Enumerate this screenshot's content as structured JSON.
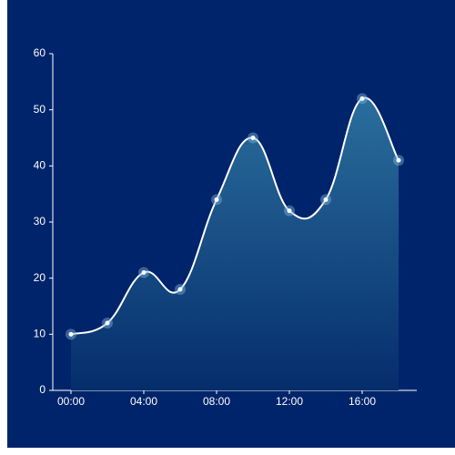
{
  "chart_data": {
    "type": "area",
    "categories": [
      "00:00",
      null,
      "04:00",
      null,
      "08:00",
      null,
      "12:00",
      null,
      "16:00",
      null
    ],
    "values": [
      10,
      12,
      21,
      18,
      34,
      45,
      32,
      34,
      52,
      41
    ],
    "color": "#ffffff",
    "ylim": [
      0,
      60
    ],
    "yticks": [
      0,
      10,
      20,
      30,
      40,
      50,
      60
    ]
  }
}
